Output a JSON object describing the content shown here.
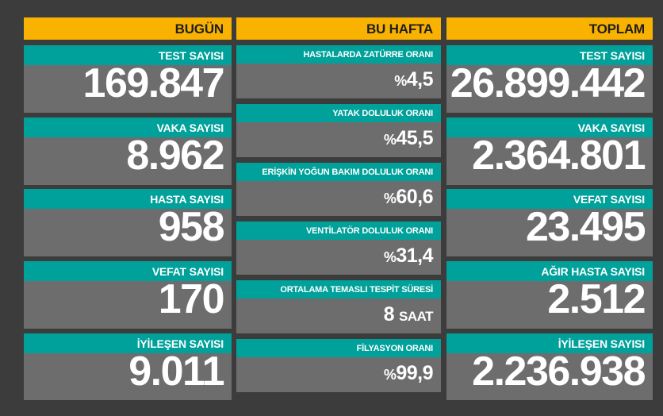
{
  "today": {
    "header": "BUGÜN",
    "cards": [
      {
        "label": "TEST SAYISI",
        "value": "169.847"
      },
      {
        "label": "VAKA SAYISI",
        "value": "8.962"
      },
      {
        "label": "HASTA SAYISI",
        "value": "958"
      },
      {
        "label": "VEFAT SAYISI",
        "value": "170"
      },
      {
        "label": "İYİLEŞEN SAYISI",
        "value": "9.011"
      }
    ]
  },
  "week": {
    "header": "BU HAFTA",
    "cards": [
      {
        "label": "HASTALARDA ZATÜRRE ORANI",
        "prefix": "%",
        "value": "4,5",
        "unit": ""
      },
      {
        "label": "YATAK DOLULUK ORANI",
        "prefix": "%",
        "value": "45,5",
        "unit": ""
      },
      {
        "label": "ERİŞKİN YOĞUN BAKIM DOLULUK ORANI",
        "prefix": "%",
        "value": "60,6",
        "unit": ""
      },
      {
        "label": "VENTİLATÖR DOLULUK ORANI",
        "prefix": "%",
        "value": "31,4",
        "unit": ""
      },
      {
        "label": "ORTALAMA TEMASLI TESPİT SÜRESİ",
        "prefix": "",
        "value": "8",
        "unit": "SAAT"
      },
      {
        "label": "FİLYASYON ORANI",
        "prefix": "%",
        "value": "99,9",
        "unit": ""
      }
    ]
  },
  "total": {
    "header": "TOPLAM",
    "cards": [
      {
        "label": "TEST SAYISI",
        "value": "26.899.442"
      },
      {
        "label": "VAKA SAYISI",
        "value": "2.364.801"
      },
      {
        "label": "VEFAT SAYISI",
        "value": "23.495"
      },
      {
        "label": "AĞIR HASTA SAYISI",
        "value": "2.512"
      },
      {
        "label": "İYİLEŞEN SAYISI",
        "value": "2.236.938"
      }
    ]
  },
  "colors": {
    "background": "#3c3c3c",
    "header": "#f9b200",
    "label": "#00a19a",
    "card": "#6d6d6d",
    "text": "#ffffff"
  }
}
